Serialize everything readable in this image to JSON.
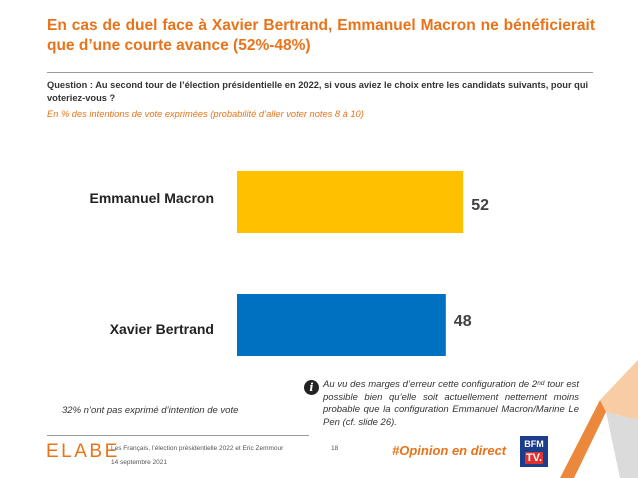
{
  "title": "En cas de duel face à Xavier Bertrand, Emmanuel Macron ne bénéficierait que d’une courte avance (52%-48%)",
  "question": "Question : Au second tour de l’élection présidentielle en 2022, si vous aviez le choix entre les candidats suivants, pour qui voteriez-vous ?",
  "subtitle": "En % des intentions de vote exprimées (probabilité d’aller voter notes 8 à 10)",
  "chart_data": {
    "type": "bar",
    "orientation": "horizontal",
    "categories": [
      "Emmanuel Macron",
      "Xavier Bertrand"
    ],
    "values": [
      52,
      48
    ],
    "colors": [
      "#FFC000",
      "#0070C0"
    ],
    "xlim": [
      0,
      60
    ],
    "grid": false
  },
  "note_left": "32% n’ont pas exprimé d’intention de vote",
  "info": {
    "icon": "info-icon",
    "glyph": "i",
    "part1": "Au vu des marges d’erreur cette configuration de 2",
    "sup": "nd",
    "part2": " tour est possible bien qu’elle soit actuellement nettement moins probable que la configuration Emmanuel Macron/Marine Le Pen (cf. slide 26)."
  },
  "footer": {
    "logo": "ELABE",
    "source": "Les Français, l’élection présidentielle 2022 et Eric Zemmour",
    "date": "14 septembre 2021",
    "page": "18",
    "hashtag": "#Opinion en direct",
    "bfm_line1": "BFM",
    "bfm_line2": "TV."
  },
  "colors": {
    "accent": "#E8731A",
    "macron": "#FFC000",
    "bertrand": "#0070C0"
  }
}
